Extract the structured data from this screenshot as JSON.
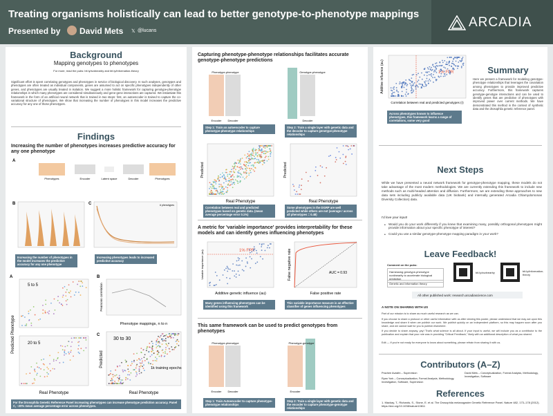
{
  "header": {
    "title": "Treating organisms holistically can lead to better genotype-to-phenotype mappings",
    "presenter_label": "Presented by",
    "presenter": "David Mets",
    "handle": "@lucans",
    "logo": "ARCADIA"
  },
  "background": {
    "heading": "Background",
    "subtitle": "Mapping genotypes to phenotypes",
    "link_note": "For more, read the pubs: bit.ly/svdnearby and bit.ly/information-theory",
    "text": "Significant effort is spent correlating genotypes and phenotypes in service of biological discovery. In such analyses, genotypes and phenotypes are often treated as individual components, genes are assumed to act on specific phenotypes independently of other genes, and phenotypes are usually treated in isolation. We suggest a more holistic framework for capturing genotype-phenotype relationships in which many phenotypes are considered simultaneously and gene-gene interactions are captured. We instantiate this framework in the form of an artificial neural network that is trained in two steps: first, an autoencoder is trained to capture the co-variational structure of phenotypes. We show that increasing the number of phenotypes in this model increases the predictive accuracy for any one of those phenotypes."
  },
  "findings": {
    "heading": "Findings",
    "subheading": "Increasing the number of phenotypes increases predictive accuracy for any one phenotype",
    "fig1": {
      "a": "A",
      "b": "B",
      "c": "C",
      "phenotypes_in": "Phenotypes",
      "encoder": "Encoder",
      "latent": "Latent space",
      "decoder": "Decoder",
      "phenotypes_out": "Phenotypes",
      "legend": "# phenotypes"
    },
    "caption1": "Increasing the number of phenotypes in the model increases the predictive accuracy for any one phenotype",
    "caption2": "Increasing phenotypes leads to increased predictive accuracy",
    "fig2": {
      "a": "A",
      "b": "B",
      "c": "C",
      "p1": "5 to 5",
      "p2": "20 to 5",
      "p3": "30 to 30",
      "epochs": "1k training epochs",
      "y_a": "Predicted Phenotype",
      "x_a": "Real Phenotype",
      "y_b": "Pearsons correlation",
      "x_b": "Phenotype mappings, n to n",
      "y_c": "Predicted",
      "x_c": "Real Phenotype"
    },
    "caption3": "For the Drosophila Genetic Reference Panel increasing phenotypes can increase phenotype prediction accuracy. Panel C, ~20% mean average percentage error across phenotypes."
  },
  "capture": {
    "heading": "Capturing phenotype-phenotype relationships facilitates accurate genotype-phenotype predictions",
    "pp": "Phenotype-phenotype",
    "gp": "Genotype-phenotype",
    "encoder": "Encoder",
    "decoder": "Decoder",
    "decoder2": "Decoder",
    "step1": "Step 1: Train an autoencoder to capture phenotype-phenotype relationships",
    "step2": "Step 2: Train a single layer with genetic data and the decoder to capture genotype-phenotype relationships",
    "y1": "Predicted",
    "x1": "Real Phenotype",
    "y2": "Predicted",
    "x2": "Real Phenotype",
    "cap1": "Correlation between real and predicted phenotypes based on genetic data. (mean average percentage error 0.1%)",
    "cap2": "Some phenotypes in the DGRP are well predicted while others are not (average r across all phenotypes = 0.48)"
  },
  "importance": {
    "heading": "A metric for 'variable importance' provides interpretability for these models and can identify genes influencing phenotypes",
    "fpr": "1% FPR",
    "y1": "Variable importance (au)",
    "x1": "Additive genetic influence (au)",
    "auc": "AUC = 0.93",
    "y2": "False negative rate",
    "x2": "False positive rate",
    "cap1": "Many genes influencing phenotypes can be identified using this framework",
    "cap2": "This variable importance measure is an effective classifier of genes influencing phenotypes"
  },
  "reverse": {
    "heading": "This same framework can be used to predict genotypes from phenotypes",
    "pp": "Phenotype-phenotype",
    "pg": "Phenotype-genotype",
    "encoder": "Encoder",
    "decoder": "Decoder",
    "encoder2": "Encoder",
    "step1": "Step 1: Train Autoencoder to capture phenotype-phenotype relationships",
    "step2": "Step 2: Train a single layer with genetic data and the encoder to capture phenotype-genotype relationships"
  },
  "col3fig": {
    "y": "Additive influence (au)",
    "fpr": "1% FPR",
    "x": "Correlation between real and predicted genotypes (r)",
    "caption": "Across phenotypes known to influence phenotypes, this framework learns a range of correlations, some very good"
  },
  "summary": {
    "heading": "Summary",
    "text": "Here we present a framework for modeling genotype-phenotype relationships that leverages the covariation among phenotypes to provide improved predictive accuracy. Furthermore, this framework captures genotype-genotype interactions and can be used to identify genes that are predictive of phenotypes with improved power over current methods. We have demonstrated this method in the context of synthetic data and the drosophila genetic reference panel."
  },
  "next_steps": {
    "heading": "Next Steps",
    "text": "While we have presented a neural network framework for genotype-phenotype mapping, these models do not take advantage of the most modern methodologies. We are currently extending this framework to include new methods such as multi-headed attention and diffusion. Furthermore, we are extending these approaches to new data sets including publicly available data (UK biobank) and internally generated Arcadia Chlamydomonas Diversity Collection) data.",
    "input": "I'd love your input!",
    "bullets": [
      "Would you do your work differently if you knew that examining many, possibly orthogonal phenotypes might provide information about your specific phenotype of interest?",
      "Could you use a similar genotype-phenotype mapping paradigm in your work?"
    ]
  },
  "feedback": {
    "heading": "Leave Feedback!",
    "comment": "Comment on the pubs:",
    "pubs": [
      "Harnessing genotype-phenotype nonlinearity to accelerate biological prediction",
      "Genetic and information theory"
    ],
    "qr": [
      "bit.ly/svdnearby",
      "bit.ly/information-theory"
    ],
    "other": "All other published work: research.arcadiascience.com"
  },
  "sharing": {
    "heading": "A NOTE ON SHARING WITH US",
    "paragraphs": [
      "Part of our mission is to share as much useful research as we can.",
      "If you choose to share a protocol or other useful information with us after viewing this poster, please understand that we may act upon this knowledge and share it when we publish our work. We publish quickly on an independent platform, so this may happen soon after you share, and we cannot wait for you to publish elsewhere.",
      "If you decide to share anyway, yay! That's what science is all about. If your input is useful, we will include you as a contributor to the publication and explain that your role was in providing \"Critical Feedback,\" likely with an additional description of what you shared.",
      "Edit — If you're not ready for everyone to know about something, please refrain from sharing it with us."
    ]
  },
  "contributors": {
    "heading": "Contributors (A–Z)",
    "people": [
      "Prachee Avasthi – Supervision",
      "Ryan York – Conceptualization, Formal Analysis, Methodology, Investigation, Software, Supervision",
      "David Mets – Conceptualization, Formal Analysis, Methodology, Investigation, Software"
    ]
  },
  "references": {
    "heading": "References",
    "items": [
      "1. Mackay, T., Richards, S., Stone, E. et al. The Drosophila melanogaster Genetic Reference Panel. Nature 482, 173–178 (2012). https://doi.org/10.1038/nature10811"
    ]
  }
}
